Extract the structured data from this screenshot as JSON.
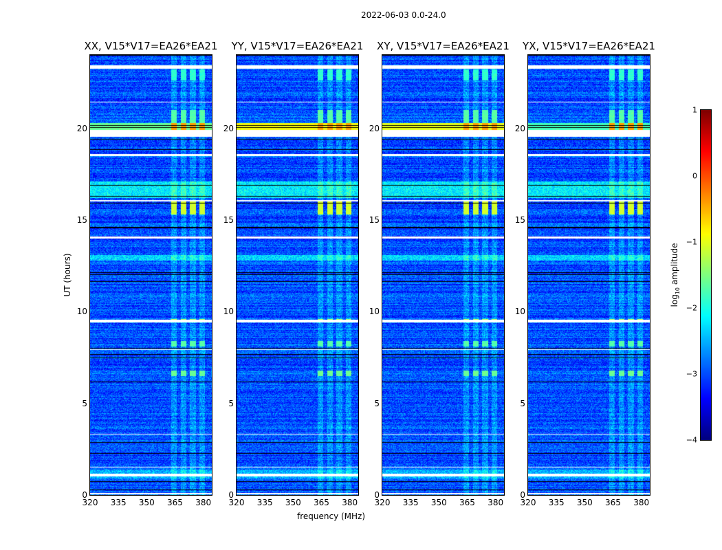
{
  "chart_data": {
    "type": "heatmap",
    "suptitle": "2022-06-03 0.0-24.0",
    "xlabel": "frequency (MHz)",
    "ylabel": "UT (hours)",
    "xlim": [
      320,
      384.5
    ],
    "ylim": [
      0,
      24
    ],
    "xticks": [
      "320",
      "335",
      "350",
      "365",
      "380"
    ],
    "xtick_values": [
      320,
      335,
      350,
      365,
      380
    ],
    "yticks": [
      "0",
      "5",
      "10",
      "15",
      "20"
    ],
    "ytick_values": [
      0,
      5,
      10,
      15,
      20
    ],
    "colorbar": {
      "label": "log10 amplitude",
      "label_main": "log",
      "label_sub": "10",
      "label_rest": " amplitude",
      "range": [
        -4,
        1
      ],
      "ticks": [
        "−4",
        "−3",
        "−2",
        "−1",
        "0",
        "1"
      ],
      "tick_values": [
        -4,
        -3,
        -2,
        -1,
        0,
        1
      ],
      "colormap": "jet"
    },
    "panels": [
      {
        "title": "XX, V15*V17=EA26*EA21",
        "band20_level": -1.6
      },
      {
        "title": "YY, V15*V17=EA26*EA21",
        "band20_level": -0.9
      },
      {
        "title": "XY, V15*V17=EA26*EA21",
        "band20_level": -1.0
      },
      {
        "title": "YX, V15*V17=EA26*EA21",
        "band20_level": -1.8
      }
    ],
    "background_level": -3.0,
    "rfi_channels_mhz": [
      [
        363,
        366
      ],
      [
        368,
        371
      ],
      [
        373,
        376
      ],
      [
        378,
        381
      ]
    ],
    "flagged_hours": [
      [
        0.05,
        0.1
      ],
      [
        1.0,
        1.15
      ],
      [
        1.5,
        1.55
      ],
      [
        3.3,
        3.35
      ],
      [
        7.9,
        7.95
      ],
      [
        9.4,
        9.55
      ],
      [
        14.0,
        14.1
      ],
      [
        16.0,
        16.1
      ],
      [
        18.5,
        18.6
      ],
      [
        19.55,
        19.9
      ],
      [
        21.4,
        21.45
      ],
      [
        23.25,
        23.45
      ]
    ],
    "bright_bands": [
      {
        "hours": [
          16.2,
          17.1
        ],
        "level": -2.2
      },
      {
        "hours": [
          12.8,
          13.1
        ],
        "level": -2.3
      },
      {
        "hours": [
          0.9,
          1.4
        ],
        "level": -2.5
      }
    ],
    "rfi_times": [
      [
        15.3,
        16.0,
        -1.1
      ],
      [
        6.5,
        6.8,
        -1.6
      ],
      [
        8.1,
        8.4,
        -1.7
      ],
      [
        19.9,
        21.0,
        -1.7
      ],
      [
        22.6,
        23.2,
        -1.9
      ],
      [
        9.4,
        9.6,
        -1.2
      ]
    ]
  }
}
